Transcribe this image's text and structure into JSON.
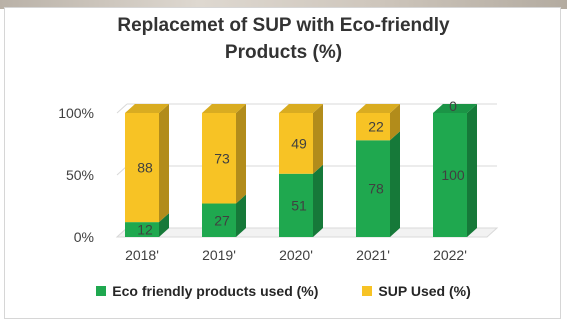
{
  "chart_data": {
    "type": "bar",
    "stacked": true,
    "three_d": true,
    "title_lines": [
      "Replacemet of SUP with Eco-friendly",
      "Products (%)"
    ],
    "categories": [
      "2018'",
      "2019'",
      "2020'",
      "2021'",
      "2022'"
    ],
    "series": [
      {
        "name": "Eco friendly products used (%)",
        "values": [
          12,
          27,
          51,
          78,
          100
        ],
        "color": "#1fa84f"
      },
      {
        "name": "SUP Used (%)",
        "values": [
          88,
          73,
          49,
          22,
          0
        ],
        "color": "#f7c325"
      }
    ],
    "y_ticks": [
      "0%",
      "50%",
      "100%"
    ],
    "ylim": [
      0,
      100
    ],
    "grid": true,
    "legend_position": "bottom"
  }
}
